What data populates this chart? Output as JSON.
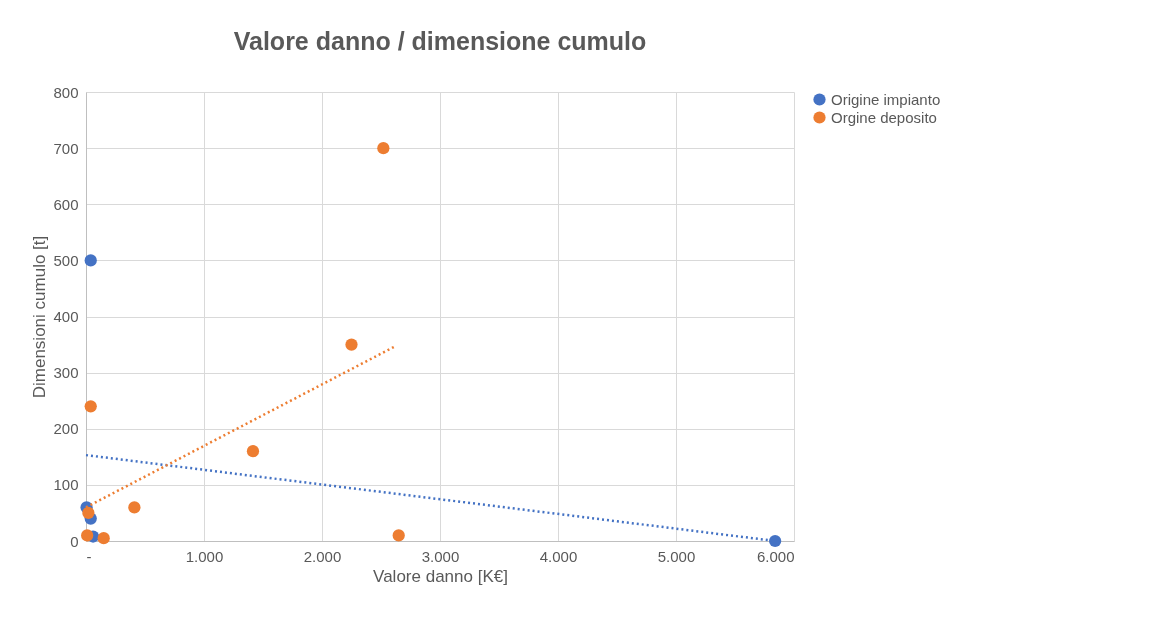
{
  "chart_data": {
    "type": "scatter",
    "title": "Valore danno / dimensione cumulo",
    "xlabel": "Valore danno [K€]",
    "ylabel": "Dimensioni cumulo [t]",
    "xlim": [
      0,
      6000
    ],
    "xticks": [
      {
        "value": 0,
        "label": "-"
      },
      {
        "value": 1000,
        "label": "1.000"
      },
      {
        "value": 2000,
        "label": "2.000"
      },
      {
        "value": 3000,
        "label": "3.000"
      },
      {
        "value": 4000,
        "label": "4.000"
      },
      {
        "value": 5000,
        "label": "5.000"
      },
      {
        "value": 6000,
        "label": "6.000"
      }
    ],
    "ylim": [
      0,
      800
    ],
    "yticks": [
      0,
      100,
      200,
      300,
      400,
      500,
      600,
      700,
      800
    ],
    "grid": true,
    "legend": "right",
    "marker": "circle",
    "series": [
      {
        "name": "Origine impianto",
        "color": "#4472c4",
        "x": [
          40,
          5,
          40,
          60,
          5840
        ],
        "values": [
          500,
          60,
          40,
          8,
          0
        ]
      },
      {
        "name": "Orgine deposito",
        "color": "#ed7d31",
        "x": [
          10,
          20,
          40,
          150,
          410,
          1415,
          2250,
          2520,
          2650
        ],
        "values": [
          10,
          50,
          240,
          5,
          60,
          160,
          350,
          700,
          10
        ]
      },
      {
        "type": "line",
        "line_style": "dotted",
        "marker": "none",
        "color": "#4472c4",
        "x": [
          0,
          5840
        ],
        "values": [
          153,
          0
        ]
      },
      {
        "type": "line",
        "line_style": "dotted",
        "marker": "none",
        "color": "#ed7d31",
        "x": [
          0,
          2630
        ],
        "values": [
          60,
          348
        ]
      }
    ]
  }
}
